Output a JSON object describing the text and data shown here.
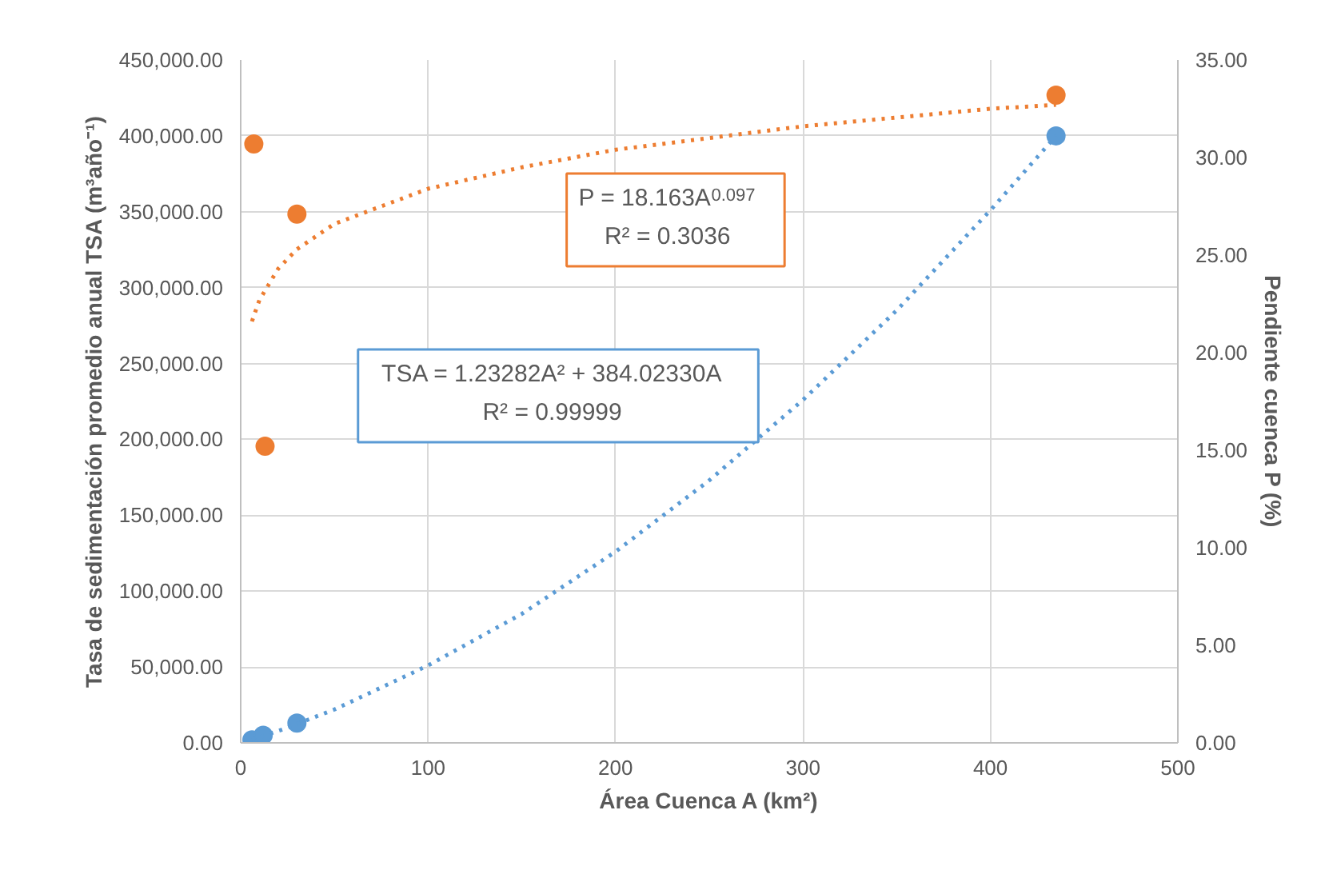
{
  "chart_data": {
    "type": "scatter",
    "xlabel": "Área Cuenca A (km²)",
    "ylabel": "Tasa de sedimentación promedio anual TSA (m³año⁻¹)",
    "y2label": "Pendiente cuenca P (%)",
    "xlim": [
      0,
      500
    ],
    "xticks": [
      0,
      100,
      200,
      300,
      400,
      500
    ],
    "ylim": [
      0,
      450000
    ],
    "yticks": [
      {
        "value": 0,
        "label": "0.00"
      },
      {
        "value": 50000,
        "label": "50,000.00"
      },
      {
        "value": 100000,
        "label": "100,000.00"
      },
      {
        "value": 150000,
        "label": "150,000.00"
      },
      {
        "value": 200000,
        "label": "200,000.00"
      },
      {
        "value": 250000,
        "label": "250,000.00"
      },
      {
        "value": 300000,
        "label": "300,000.00"
      },
      {
        "value": 350000,
        "label": "350,000.00"
      },
      {
        "value": 400000,
        "label": "400,000.00"
      },
      {
        "value": 450000,
        "label": "450,000.00"
      }
    ],
    "y2lim": [
      0,
      35
    ],
    "y2ticks": [
      {
        "value": 0,
        "label": "0.00"
      },
      {
        "value": 5,
        "label": "5.00"
      },
      {
        "value": 10,
        "label": "10.00"
      },
      {
        "value": 15,
        "label": "15.00"
      },
      {
        "value": 20,
        "label": "20.00"
      },
      {
        "value": 25,
        "label": "25.00"
      },
      {
        "value": 30,
        "label": "30.00"
      },
      {
        "value": 35,
        "label": "35.00"
      }
    ],
    "grid": true,
    "marker": "circle",
    "line_style": "dotted",
    "series": [
      {
        "color": "#5b9bd5",
        "x": [
          6,
          12,
          30,
          435
        ],
        "values": [
          2000,
          5000,
          13000,
          400000
        ]
      },
      {
        "color": "#ed7d31",
        "axis": "y2",
        "x": [
          7,
          13,
          30,
          435
        ],
        "values": [
          30.7,
          15.2,
          27.1,
          33.2
        ]
      },
      {
        "type": "line",
        "marker": "none",
        "color": "#5b9bd5",
        "x": [
          6,
          25,
          50,
          100,
          150,
          200,
          250,
          300,
          350,
          400,
          435
        ],
        "values": [
          2000,
          10000,
          22000,
          51000,
          85000,
          126000,
          173000,
          226000,
          285000,
          351000,
          400000
        ]
      },
      {
        "type": "line",
        "marker": "none",
        "color": "#ed7d31",
        "axis": "y2",
        "x": [
          6,
          10,
          20,
          30,
          50,
          100,
          150,
          200,
          300,
          400,
          435
        ],
        "values": [
          21.6,
          22.7,
          24.3,
          25.3,
          26.6,
          28.4,
          29.5,
          30.4,
          31.6,
          32.5,
          32.7
        ]
      }
    ],
    "annotations": [
      "P = 18.163A$^{0.097}$\nR² = 0.3036",
      "TSA = 1.23282A² + 384.02330A\nR² = 0.99999"
    ]
  }
}
